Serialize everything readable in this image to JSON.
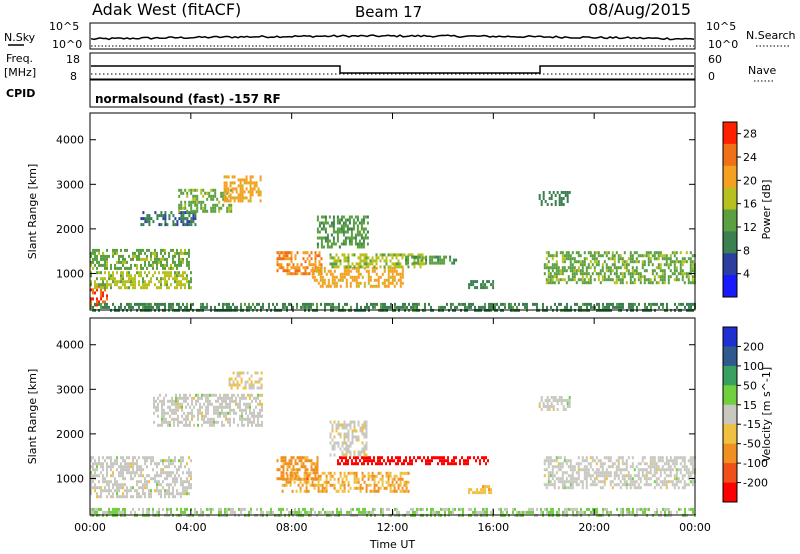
{
  "header": {
    "station": "Adak West (fitACF)",
    "beam": "Beam 17",
    "date": "08/Aug/2015"
  },
  "top_panels": {
    "nsky_label": "N.Sky",
    "nsky_ticks": [
      "10^5",
      "10^0"
    ],
    "nsearch_label": "N.Search",
    "nsearch_ticks": [
      "10^5",
      "10^0"
    ],
    "freq_label_line1": "Freq.",
    "freq_label_line2": "[MHz]",
    "freq_ticks": [
      "18",
      "8"
    ],
    "nave_label": "Nave",
    "nave_ticks": [
      "60",
      "0"
    ],
    "cpid_label": "CPID",
    "cpid_text": "normalsound (fast) -157 RF"
  },
  "chart_data": [
    {
      "type": "heatmap",
      "title": "",
      "xlabel": "Time UT",
      "ylabel": "Slant Range [km]",
      "x_ticks": [
        "00:00",
        "04:00",
        "08:00",
        "12:00",
        "16:00",
        "20:00",
        "00:00"
      ],
      "xlim_hours": [
        0,
        24
      ],
      "y_ticks": [
        1000,
        2000,
        3000,
        4000
      ],
      "ylim": [
        180,
        4600
      ],
      "colorbar": {
        "label": "Power [dB]",
        "ticks": [
          4,
          8,
          12,
          16,
          20,
          24,
          28
        ],
        "range": [
          0,
          30
        ],
        "colors": [
          "#1a1aff",
          "#2c3ea0",
          "#3a8050",
          "#5aa040",
          "#b8c020",
          "#f5a020",
          "#f07018",
          "#ff2000"
        ]
      },
      "regions": [
        {
          "t0": 0.0,
          "t1": 0.7,
          "r0": 300,
          "r1": 800,
          "value": 26
        },
        {
          "t0": 0.0,
          "t1": 4.0,
          "r0": 650,
          "r1": 1050,
          "value": 16
        },
        {
          "t0": 0.0,
          "t1": 3.9,
          "r0": 1100,
          "r1": 1550,
          "value": 14
        },
        {
          "t0": 2.0,
          "t1": 4.2,
          "r0": 2100,
          "r1": 2400,
          "value": 8
        },
        {
          "t0": 3.5,
          "t1": 5.6,
          "r0": 2400,
          "r1": 2900,
          "value": 14
        },
        {
          "t0": 5.3,
          "t1": 6.8,
          "r0": 2600,
          "r1": 3200,
          "value": 20
        },
        {
          "t0": 7.4,
          "t1": 9.2,
          "r0": 1000,
          "r1": 1500,
          "value": 22
        },
        {
          "t0": 8.8,
          "t1": 12.4,
          "r0": 700,
          "r1": 1150,
          "value": 20
        },
        {
          "t0": 9.5,
          "t1": 13.3,
          "r0": 1150,
          "r1": 1450,
          "value": 16
        },
        {
          "t0": 9.0,
          "t1": 11.0,
          "r0": 1600,
          "r1": 2300,
          "value": 12
        },
        {
          "t0": 12.5,
          "t1": 14.5,
          "r0": 1250,
          "r1": 1400,
          "value": 12
        },
        {
          "t0": 15.0,
          "t1": 16.0,
          "r0": 650,
          "r1": 850,
          "value": 10
        },
        {
          "t0": 17.8,
          "t1": 19.0,
          "r0": 2550,
          "r1": 2850,
          "value": 10
        },
        {
          "t0": 18.0,
          "t1": 24.0,
          "r0": 800,
          "r1": 1500,
          "value": 14
        },
        {
          "t0": 0.0,
          "t1": 24.0,
          "r0": 180,
          "r1": 340,
          "value": 10
        }
      ]
    },
    {
      "type": "heatmap",
      "title": "",
      "xlabel": "Time UT",
      "ylabel": "Slant Range [km]",
      "x_ticks": [
        "00:00",
        "04:00",
        "08:00",
        "12:00",
        "16:00",
        "20:00",
        "00:00"
      ],
      "xlim_hours": [
        0,
        24
      ],
      "y_ticks": [
        1000,
        2000,
        3000,
        4000
      ],
      "ylim": [
        180,
        4600
      ],
      "colorbar": {
        "label": "Velocity [m s^-1]",
        "ticks": [
          "200",
          "100",
          "50",
          "15",
          "-15",
          "-50",
          "-100",
          "-200"
        ],
        "range": [
          -250,
          250
        ],
        "colors": [
          "#2030d0",
          "#2e5a8e",
          "#3aa060",
          "#70d040",
          "#c8c8c0",
          "#f0c040",
          "#f09020",
          "#f05018",
          "#ff0000"
        ]
      },
      "regions": [
        {
          "t0": 0.0,
          "t1": 4.0,
          "r0": 600,
          "r1": 1500,
          "value": 0
        },
        {
          "t0": 2.5,
          "t1": 6.8,
          "r0": 2200,
          "r1": 2900,
          "value": 0
        },
        {
          "t0": 5.5,
          "t1": 6.8,
          "r0": 3000,
          "r1": 3400,
          "value": -30
        },
        {
          "t0": 7.6,
          "t1": 12.6,
          "r0": 700,
          "r1": 1150,
          "value": -80
        },
        {
          "t0": 7.4,
          "t1": 9.0,
          "r0": 1000,
          "r1": 1500,
          "value": -110
        },
        {
          "t0": 9.8,
          "t1": 15.8,
          "r0": 1300,
          "r1": 1500,
          "value": -230
        },
        {
          "t0": 9.5,
          "t1": 11.0,
          "r0": 1500,
          "r1": 2300,
          "value": -10
        },
        {
          "t0": 15.0,
          "t1": 16.0,
          "r0": 700,
          "r1": 850,
          "value": -60
        },
        {
          "t0": 17.8,
          "t1": 19.0,
          "r0": 2550,
          "r1": 2850,
          "value": 0
        },
        {
          "t0": 18.0,
          "t1": 24.0,
          "r0": 800,
          "r1": 1500,
          "value": 0
        },
        {
          "t0": 0.0,
          "t1": 24.0,
          "r0": 180,
          "r1": 340,
          "value": 30
        }
      ]
    }
  ]
}
